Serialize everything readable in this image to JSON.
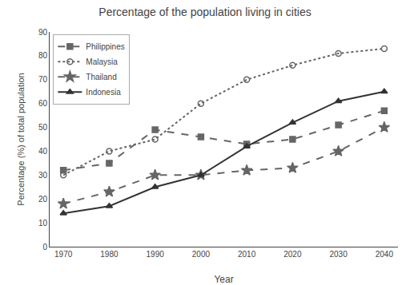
{
  "chart_data": {
    "type": "line",
    "title": "Percentage of the population living in cities",
    "xlabel": "Year",
    "ylabel": "Percentage (%) of total population",
    "x": [
      1970,
      1980,
      1990,
      2000,
      2010,
      2020,
      2030,
      2040
    ],
    "series": [
      {
        "name": "Philippines",
        "color": "#666666",
        "line_style": "dashed",
        "marker": "square",
        "values": [
          32,
          35,
          49,
          46,
          43,
          45,
          51,
          57
        ]
      },
      {
        "name": "Malaysia",
        "color": "#666666",
        "line_style": "dotted",
        "marker": "circle-open",
        "values": [
          30,
          40,
          45,
          60,
          70,
          76,
          81,
          83
        ]
      },
      {
        "name": "Thailand",
        "color": "#666666",
        "line_style": "dashed",
        "marker": "star",
        "values": [
          18,
          23,
          30,
          30,
          32,
          33,
          40,
          50
        ]
      },
      {
        "name": "Indonesia",
        "color": "#333333",
        "line_style": "solid",
        "marker": "triangle-up",
        "values": [
          14,
          17,
          25,
          30,
          42,
          52,
          61,
          65
        ]
      }
    ],
    "xlim": [
      1967,
      2043
    ],
    "xticks": [
      1970,
      1980,
      1990,
      2000,
      2010,
      2020,
      2030,
      2040
    ],
    "ylim": [
      0,
      90
    ],
    "yticks": [
      0,
      10,
      20,
      30,
      40,
      50,
      60,
      70,
      80,
      90
    ],
    "grid": false,
    "legend": "upper left"
  }
}
